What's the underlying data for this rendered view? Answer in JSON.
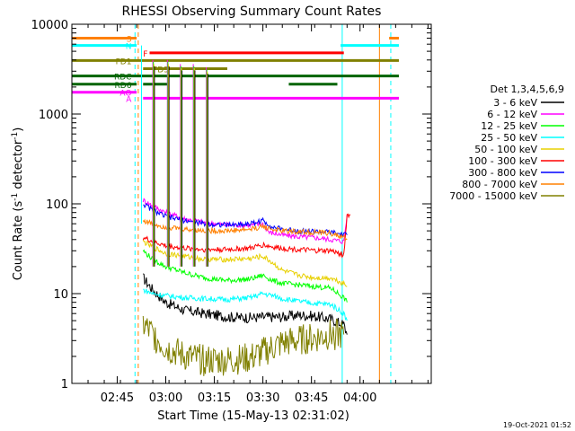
{
  "chart_data": {
    "type": "line",
    "title": "RHESSI Observing Summary Count Rates",
    "xlabel": "Start Time (15-May-13 02:31:02)",
    "ylabel_main": "Count Rate (s",
    "ylabel_sup": "-1",
    "ylabel_mid": " detector",
    "ylabel_sup2": "-1",
    "ylabel_end": ")",
    "footer": "19-Oct-2021 01:52",
    "x_axis": {
      "unit": "minutes after 02:31:02",
      "range": [
        0,
        111
      ],
      "ticks": [
        {
          "label": "02:45",
          "value": 14
        },
        {
          "label": "03:00",
          "value": 29
        },
        {
          "label": "03:15",
          "value": 44
        },
        {
          "label": "03:30",
          "value": 59
        },
        {
          "label": "03:45",
          "value": 74
        },
        {
          "label": "04:00",
          "value": 89
        }
      ]
    },
    "y_axis": {
      "scale": "log",
      "range": [
        1,
        10000
      ],
      "ticks": [
        {
          "label": "1",
          "value": 1
        },
        {
          "label": "10",
          "value": 10
        },
        {
          "label": "100",
          "value": 100
        },
        {
          "label": "1000",
          "value": 1000
        },
        {
          "label": "10000",
          "value": 10000
        }
      ]
    },
    "legend": {
      "title": "Det 1,3,4,5,6,9",
      "position": "right",
      "entries": [
        {
          "label": "3 - 6 keV",
          "color": "#000000"
        },
        {
          "label": "6 - 12 keV",
          "color": "#ff00ff"
        },
        {
          "label": "12 - 25 keV",
          "color": "#00ff00"
        },
        {
          "label": "25 - 50 keV",
          "color": "#00ffff"
        },
        {
          "label": "50 - 100 keV",
          "color": "#e8d000"
        },
        {
          "label": "100 - 300 keV",
          "color": "#ff0000"
        },
        {
          "label": "300 - 800 keV",
          "color": "#0000ff"
        },
        {
          "label": "800 - 7000 keV",
          "color": "#ff8000"
        },
        {
          "label": "7000 - 15000 keV",
          "color": "#808000"
        }
      ]
    },
    "flag_bars": [
      {
        "label": "S",
        "color": "#ff8000",
        "y": 7000,
        "segments": [
          [
            0,
            20
          ],
          [
            98,
            101
          ]
        ]
      },
      {
        "label": "N",
        "color": "#00ffff",
        "y": 5800,
        "segments": [
          [
            0,
            20
          ],
          [
            83,
            101
          ]
        ]
      },
      {
        "label": "F",
        "color": "#ff0000",
        "y": 4800,
        "segments": [
          [
            24,
            84
          ]
        ]
      },
      {
        "label": "FD1",
        "color": "#808000",
        "y": 3950,
        "segments": [
          [
            0,
            101
          ]
        ]
      },
      {
        "label": "FD3",
        "color": "#808000",
        "y": 3200,
        "segments": [
          [
            22,
            48
          ]
        ]
      },
      {
        "label": "RDC",
        "color": "#006400",
        "y": 2650,
        "segments": [
          [
            0,
            101
          ]
        ]
      },
      {
        "label": "RD6",
        "color": "#006400",
        "y": 2150,
        "segments": [
          [
            0,
            20
          ],
          [
            22,
            30
          ],
          [
            67,
            82
          ]
        ]
      },
      {
        "label": "A",
        "color": "#ff00ff",
        "y": 1500,
        "segments": [
          [
            22,
            101
          ]
        ]
      },
      {
        "label": "AO",
        "color": "#ff00ff",
        "y": 1750,
        "segments": [
          [
            0,
            20
          ]
        ]
      }
    ],
    "vlines": [
      {
        "x": 19.5,
        "color": "#00ffff",
        "style": "dashed"
      },
      {
        "x": 20.5,
        "color": "#ff8000",
        "style": "dashed"
      },
      {
        "x": 83.5,
        "color": "#00ffff",
        "style": "solid"
      },
      {
        "x": 95,
        "color": "#ff8000",
        "style": "solid"
      },
      {
        "x": 98.5,
        "color": "#00ffff",
        "style": "dashed"
      }
    ],
    "series": [
      {
        "name": "3 - 6 keV",
        "color": "#000000",
        "x": [
          22,
          25,
          29,
          35,
          41,
          48,
          55,
          60,
          65,
          70,
          75,
          80,
          84,
          85
        ],
        "y": [
          15,
          11,
          8,
          6.5,
          6,
          5.5,
          5.4,
          5.5,
          5.5,
          5.8,
          5.6,
          5.2,
          4.5,
          3.5
        ]
      },
      {
        "name": "6 - 12 keV",
        "color": "#ff00ff",
        "x": [
          22,
          25,
          29,
          35,
          41,
          48,
          55,
          59,
          61,
          65,
          70,
          75,
          80,
          84,
          85
        ],
        "y": [
          110,
          95,
          80,
          68,
          62,
          58,
          58,
          60,
          48,
          45,
          43,
          42,
          40,
          38,
          75
        ]
      },
      {
        "name": "12 - 25 keV",
        "color": "#00ff00",
        "x": [
          22,
          25,
          29,
          35,
          41,
          48,
          55,
          59,
          62,
          65,
          70,
          75,
          80,
          84,
          85
        ],
        "y": [
          30,
          24,
          20,
          17,
          15,
          14,
          14.5,
          16,
          14,
          13,
          12.5,
          12,
          11.5,
          9,
          8
        ]
      },
      {
        "name": "25 - 50 keV",
        "color": "#00ffff",
        "x": [
          22,
          25,
          29,
          35,
          41,
          48,
          55,
          59,
          62,
          65,
          70,
          75,
          80,
          84,
          85
        ],
        "y": [
          11,
          10,
          9.5,
          9,
          8.8,
          8.6,
          9,
          10,
          9.5,
          8.8,
          8.2,
          7.8,
          7.6,
          6,
          5
        ]
      },
      {
        "name": "50 - 100 keV",
        "color": "#e8d000",
        "x": [
          22,
          25,
          29,
          35,
          41,
          48,
          55,
          59,
          62,
          65,
          70,
          75,
          80,
          84,
          85
        ],
        "y": [
          38,
          33,
          28,
          26,
          24,
          24,
          24.5,
          26,
          22,
          18,
          16,
          15,
          15,
          13,
          12
        ]
      },
      {
        "name": "100 - 300 keV",
        "color": "#ff0000",
        "x": [
          22,
          25,
          29,
          35,
          41,
          48,
          55,
          59,
          62,
          65,
          70,
          75,
          80,
          84,
          85,
          86
        ],
        "y": [
          42,
          38,
          34,
          32,
          31,
          31,
          32,
          35,
          33,
          32,
          31,
          30,
          30,
          27,
          75,
          75
        ]
      },
      {
        "name": "300 - 800 keV",
        "color": "#0000ff",
        "x": [
          22,
          25,
          29,
          35,
          41,
          48,
          55,
          59,
          62,
          65,
          70,
          75,
          80,
          84,
          85
        ],
        "y": [
          100,
          85,
          72,
          65,
          60,
          58,
          60,
          65,
          55,
          52,
          50,
          49,
          48,
          45,
          45
        ]
      },
      {
        "name": "800 - 7000 keV",
        "color": "#ff8000",
        "x": [
          22,
          25,
          29,
          35,
          41,
          48,
          55,
          59,
          62,
          65,
          70,
          75,
          80,
          84,
          85
        ],
        "y": [
          65,
          60,
          55,
          52,
          50,
          50,
          52,
          56,
          52,
          50,
          49,
          48,
          47,
          42,
          40
        ]
      },
      {
        "name": "7000 - 15000 keV",
        "color": "#808000",
        "x": [
          22,
          25,
          29,
          35,
          41,
          48,
          55,
          59,
          62,
          65,
          70,
          75,
          80,
          84
        ],
        "y": [
          4.5,
          3.5,
          2.5,
          2,
          1.8,
          1.8,
          1.9,
          2.2,
          2.5,
          2.8,
          3,
          3.2,
          3.5,
          3.5
        ]
      }
    ],
    "spikes": [
      {
        "x": 25,
        "peak": 4000
      },
      {
        "x": 29.5,
        "peak": 4000
      },
      {
        "x": 33.5,
        "peak": 3600
      },
      {
        "x": 37.5,
        "peak": 3600
      },
      {
        "x": 41.5,
        "peak": 3300
      }
    ]
  }
}
